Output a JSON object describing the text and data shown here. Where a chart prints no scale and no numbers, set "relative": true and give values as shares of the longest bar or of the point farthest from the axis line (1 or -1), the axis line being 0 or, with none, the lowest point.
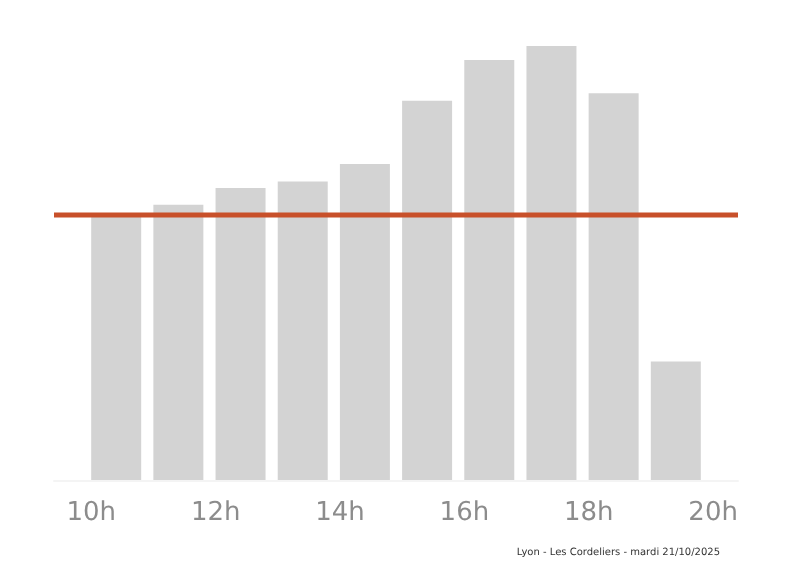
{
  "chart_data": {
    "type": "bar",
    "relative": true,
    "x": [
      10.4,
      11.4,
      12.4,
      13.4,
      14.4,
      15.4,
      16.4,
      17.4,
      18.4,
      19.4
    ],
    "values": [
      0.611,
      0.634,
      0.673,
      0.688,
      0.728,
      0.874,
      0.968,
      1,
      0.891,
      0.273
    ],
    "color": "#d3d3d3",
    "xlim": [
      9.4,
      20.4
    ],
    "xticks": [
      {
        "value": 10,
        "label": "10h"
      },
      {
        "value": 12,
        "label": "12h"
      },
      {
        "value": 14,
        "label": "14h"
      },
      {
        "value": 16,
        "label": "16h"
      },
      {
        "value": 18,
        "label": "18h"
      },
      {
        "value": 20,
        "label": "20h"
      }
    ],
    "ref_lines": [
      {
        "axis": "y",
        "value": 0.613,
        "label": null,
        "color": "#c8502a"
      }
    ],
    "annotations": [
      "Lyon - Les Cordeliers - mardi 21/10/2025"
    ]
  }
}
